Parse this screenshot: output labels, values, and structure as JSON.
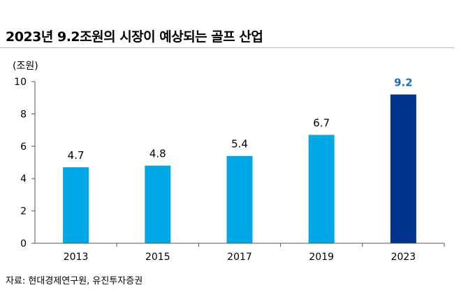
{
  "title": "2023년 9.2조원의 시장이 예상되는 골프 산업",
  "source": "자료: 현대경제연구원, 유진투자증권",
  "colors": {
    "bar": "#00a8e8",
    "highlight_bar": "#00338d",
    "highlight_label": "#1f6bb5"
  },
  "chart_data": {
    "type": "bar",
    "title": "2023년 9.2조원의 시장이 예상되는 골프 산업",
    "ylabel": "(조원)",
    "xlabel": "",
    "categories": [
      "2013",
      "2015",
      "2017",
      "2019",
      "2023"
    ],
    "values": [
      4.7,
      4.8,
      5.4,
      6.7,
      9.2
    ],
    "labels": [
      "4.7",
      "4.8",
      "5.4",
      "6.7",
      "9.2"
    ],
    "highlight_index": 4,
    "ylim": [
      0,
      10
    ],
    "yticks": [
      0,
      2,
      4,
      6,
      8,
      10
    ],
    "grid": false,
    "legend": "none"
  }
}
